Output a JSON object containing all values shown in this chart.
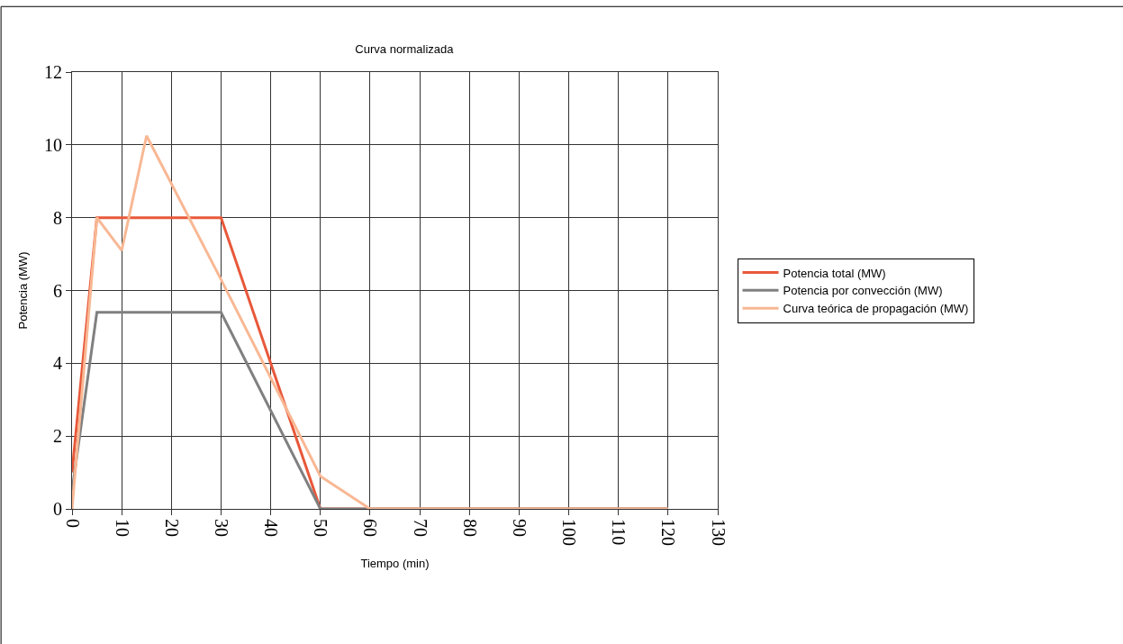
{
  "chart_data": {
    "type": "line",
    "title": "Curva normalizada",
    "xlabel": "Tiempo (min)",
    "ylabel": "Potencia (MW)",
    "series": [
      {
        "name": "Potencia total (MW)",
        "color": "#e8583a",
        "x": [
          0,
          5,
          30,
          50,
          120
        ],
        "values": [
          1.0,
          8,
          8,
          0,
          0
        ]
      },
      {
        "name": "Potencia por convección (MW)",
        "color": "#808080",
        "x": [
          0,
          5,
          30,
          50,
          120
        ],
        "values": [
          0.5,
          5.4,
          5.4,
          0,
          0
        ]
      },
      {
        "name": "Curva teórica de propagación (MW)",
        "color": "#f8b894",
        "x": [
          0,
          5,
          10,
          15,
          30,
          40,
          50,
          60,
          120
        ],
        "values": [
          0,
          8,
          7.1,
          10.25,
          6.3,
          3.6,
          0.9,
          0,
          0
        ]
      }
    ],
    "xlim": [
      0,
      130
    ],
    "xticks": [
      0,
      10,
      20,
      30,
      40,
      50,
      60,
      70,
      80,
      90,
      100,
      110,
      120,
      130
    ],
    "ylim": [
      0,
      12
    ],
    "yticks": [
      0,
      2,
      4,
      6,
      8,
      10,
      12
    ],
    "grid": true,
    "legend": "right",
    "marker": "none",
    "line_style": "solid"
  }
}
